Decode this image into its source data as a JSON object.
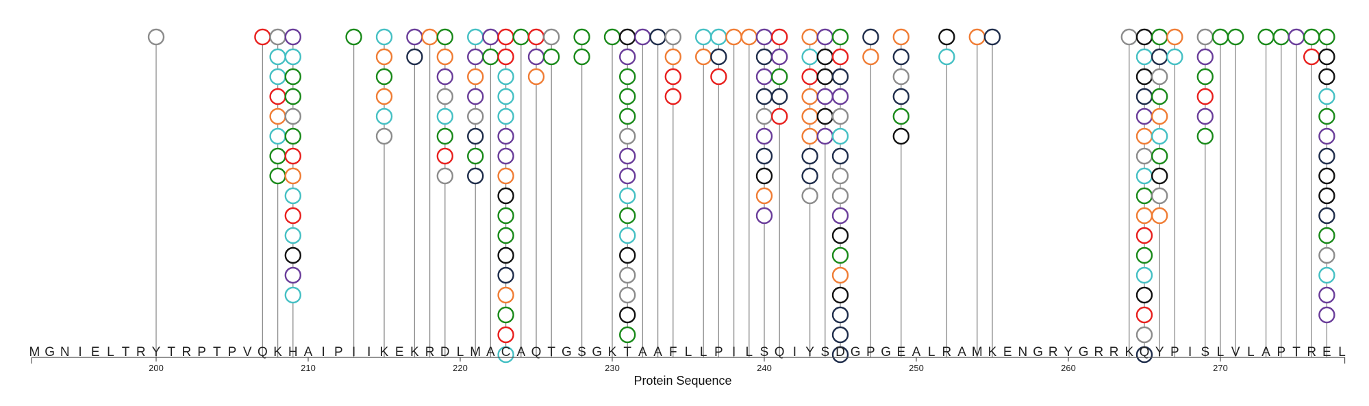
{
  "chart_data": {
    "type": "lollipop",
    "title": "",
    "xlabel": "Protein Sequence",
    "ylabel": "",
    "sequence_start": 192,
    "sequence": "MGNIELTRYTRPTPVQKHAIPIIKEKRDLMACAQTGSGKTAAFLLPILSQIYSDGPGEALRAMKENGRYGRRKQYPISLVLAPTREL",
    "xlim": [
      192,
      278
    ],
    "x_ticks": [
      200,
      210,
      220,
      230,
      240,
      250,
      260,
      270
    ],
    "palette": {
      "gray": "#8c8c8c",
      "red": "#e8201e",
      "purple": "#6a3d9a",
      "green": "#1a8a1a",
      "cyan": "#45c0c4",
      "orange": "#f07d35",
      "black": "#111111",
      "navy": "#1f2d4b"
    },
    "stem_color": "#8c8c8c",
    "positions": [
      {
        "pos": 200,
        "stack": [
          "gray"
        ]
      },
      {
        "pos": 207,
        "stack": [
          "red"
        ]
      },
      {
        "pos": 208,
        "stack": [
          "gray",
          "cyan",
          "cyan",
          "red",
          "orange",
          "cyan",
          "green",
          "green"
        ]
      },
      {
        "pos": 209,
        "stack": [
          "purple",
          "cyan",
          "green",
          "green",
          "gray",
          "green",
          "red",
          "orange",
          "cyan",
          "red",
          "cyan",
          "black",
          "purple",
          "cyan"
        ]
      },
      {
        "pos": 213,
        "stack": [
          "green"
        ]
      },
      {
        "pos": 215,
        "stack": [
          "cyan",
          "orange",
          "green",
          "orange",
          "cyan",
          "gray"
        ]
      },
      {
        "pos": 217,
        "stack": [
          "purple",
          "navy"
        ]
      },
      {
        "pos": 218,
        "stack": [
          "orange"
        ]
      },
      {
        "pos": 219,
        "stack": [
          "green",
          "orange",
          "purple",
          "gray",
          "cyan",
          "green",
          "red",
          "gray"
        ]
      },
      {
        "pos": 221,
        "stack": [
          "cyan",
          "purple",
          "orange",
          "purple",
          "gray",
          "navy",
          "green",
          "navy"
        ]
      },
      {
        "pos": 222,
        "stack": [
          "purple",
          "green"
        ]
      },
      {
        "pos": 223,
        "stack": [
          "red",
          "red",
          "cyan",
          "cyan",
          "cyan",
          "purple",
          "purple",
          "orange",
          "black",
          "green",
          "green",
          "black",
          "navy",
          "orange",
          "green",
          "red",
          "cyan"
        ]
      },
      {
        "pos": 224,
        "stack": [
          "green"
        ]
      },
      {
        "pos": 225,
        "stack": [
          "red",
          "purple",
          "orange"
        ]
      },
      {
        "pos": 226,
        "stack": [
          "gray",
          "green"
        ]
      },
      {
        "pos": 228,
        "stack": [
          "green",
          "green"
        ]
      },
      {
        "pos": 230,
        "stack": [
          "green"
        ]
      },
      {
        "pos": 231,
        "stack": [
          "black",
          "purple",
          "green",
          "green",
          "green",
          "gray",
          "purple",
          "purple",
          "cyan",
          "green",
          "cyan",
          "black",
          "gray",
          "gray",
          "black",
          "green"
        ]
      },
      {
        "pos": 232,
        "stack": [
          "purple"
        ]
      },
      {
        "pos": 233,
        "stack": [
          "navy"
        ]
      },
      {
        "pos": 234,
        "stack": [
          "gray",
          "orange",
          "red",
          "red"
        ]
      },
      {
        "pos": 236,
        "stack": [
          "cyan",
          "orange"
        ]
      },
      {
        "pos": 237,
        "stack": [
          "cyan",
          "navy",
          "red"
        ]
      },
      {
        "pos": 238,
        "stack": [
          "orange"
        ]
      },
      {
        "pos": 239,
        "stack": [
          "orange"
        ]
      },
      {
        "pos": 240,
        "stack": [
          "purple",
          "navy",
          "purple",
          "navy",
          "gray",
          "purple",
          "navy",
          "black",
          "orange",
          "purple"
        ]
      },
      {
        "pos": 241,
        "stack": [
          "red",
          "purple",
          "green",
          "navy",
          "red"
        ]
      },
      {
        "pos": 243,
        "stack": [
          "orange",
          "cyan",
          "red",
          "orange",
          "orange",
          "orange",
          "navy",
          "navy",
          "gray"
        ]
      },
      {
        "pos": 244,
        "stack": [
          "purple",
          "black",
          "black",
          "purple",
          "black",
          "purple"
        ]
      },
      {
        "pos": 245,
        "stack": [
          "green",
          "red",
          "navy",
          "purple",
          "gray",
          "cyan",
          "navy",
          "gray",
          "gray",
          "purple",
          "black",
          "green",
          "orange",
          "black",
          "navy",
          "navy",
          "navy"
        ]
      },
      {
        "pos": 247,
        "stack": [
          "navy",
          "orange"
        ]
      },
      {
        "pos": 249,
        "stack": [
          "orange",
          "navy",
          "gray",
          "navy",
          "green",
          "black"
        ]
      },
      {
        "pos": 252,
        "stack": [
          "black",
          "cyan"
        ]
      },
      {
        "pos": 254,
        "stack": [
          "orange"
        ]
      },
      {
        "pos": 255,
        "stack": [
          "navy"
        ]
      },
      {
        "pos": 264,
        "stack": [
          "gray"
        ]
      },
      {
        "pos": 265,
        "stack": [
          "black",
          "cyan",
          "black",
          "navy",
          "purple",
          "orange",
          "gray",
          "cyan",
          "green",
          "orange",
          "red",
          "green",
          "cyan",
          "black",
          "red",
          "gray",
          "navy"
        ]
      },
      {
        "pos": 266,
        "stack": [
          "green",
          "navy",
          "gray",
          "green",
          "orange",
          "cyan",
          "green",
          "black",
          "gray",
          "orange"
        ]
      },
      {
        "pos": 267,
        "stack": [
          "orange",
          "cyan"
        ]
      },
      {
        "pos": 269,
        "stack": [
          "gray",
          "purple",
          "green",
          "red",
          "purple",
          "green"
        ]
      },
      {
        "pos": 270,
        "stack": [
          "green"
        ]
      },
      {
        "pos": 271,
        "stack": [
          "green"
        ]
      },
      {
        "pos": 273,
        "stack": [
          "green"
        ]
      },
      {
        "pos": 274,
        "stack": [
          "green"
        ]
      },
      {
        "pos": 275,
        "stack": [
          "purple"
        ]
      },
      {
        "pos": 276,
        "stack": [
          "green",
          "red"
        ]
      },
      {
        "pos": 277,
        "stack": [
          "green",
          "black",
          "black",
          "cyan",
          "green",
          "purple",
          "navy",
          "black",
          "black",
          "navy",
          "green",
          "gray",
          "cyan",
          "purple",
          "purple"
        ]
      }
    ]
  }
}
